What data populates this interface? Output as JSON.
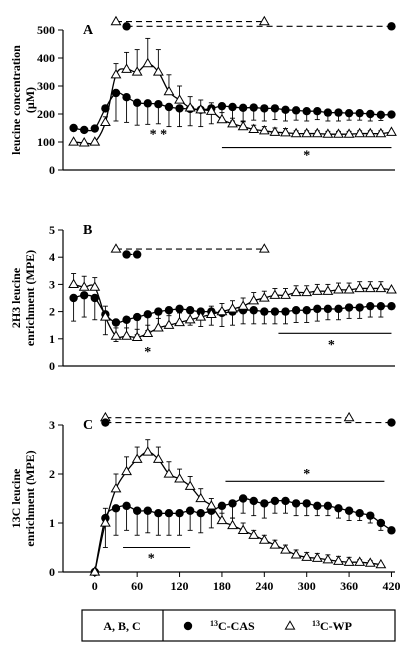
{
  "chart_data": [
    {
      "type": "line",
      "panel_label": "A",
      "ylabel": [
        "leucine concentration",
        "(μM)"
      ],
      "ylim": [
        0,
        500
      ],
      "yticks": [
        0,
        100,
        200,
        300,
        400,
        500
      ],
      "xlim": [
        -45,
        425
      ],
      "annotation_y": 515,
      "series": [
        {
          "name": "13C-CAS",
          "marker": "filled-circle",
          "x": [
            -30,
            -15,
            0,
            15,
            30,
            45,
            60,
            75,
            90,
            105,
            120,
            135,
            150,
            165,
            180,
            195,
            210,
            225,
            240,
            255,
            270,
            285,
            300,
            315,
            330,
            345,
            360,
            375,
            390,
            405,
            420
          ],
          "y": [
            150,
            143,
            148,
            220,
            275,
            260,
            240,
            238,
            235,
            225,
            220,
            218,
            215,
            220,
            228,
            225,
            222,
            223,
            220,
            220,
            215,
            213,
            210,
            210,
            205,
            205,
            203,
            203,
            200,
            197,
            198
          ],
          "err": [
            0,
            0,
            0,
            0,
            100,
            90,
            80,
            75,
            70,
            70,
            65,
            60,
            60,
            55,
            55,
            50,
            50,
            45,
            45,
            40,
            40,
            35,
            35,
            30,
            30,
            30,
            25,
            25,
            25,
            20,
            0
          ]
        },
        {
          "name": "13C-WP",
          "marker": "open-triangle",
          "x": [
            -30,
            -15,
            0,
            15,
            30,
            45,
            60,
            75,
            90,
            105,
            120,
            135,
            150,
            165,
            180,
            195,
            210,
            225,
            240,
            255,
            270,
            285,
            300,
            315,
            330,
            345,
            360,
            375,
            390,
            405,
            420
          ],
          "y": [
            100,
            97,
            100,
            170,
            340,
            360,
            350,
            380,
            350,
            280,
            250,
            222,
            215,
            210,
            180,
            165,
            155,
            145,
            140,
            135,
            133,
            130,
            130,
            130,
            128,
            128,
            128,
            130,
            130,
            130,
            135
          ],
          "err": [
            0,
            0,
            0,
            20,
            40,
            60,
            80,
            90,
            80,
            60,
            50,
            40,
            35,
            30,
            25,
            20,
            20,
            15,
            15,
            15,
            15,
            10,
            10,
            10,
            10,
            10,
            10,
            10,
            10,
            10,
            0
          ]
        }
      ],
      "lines": [
        {
          "style": "dashed",
          "series": "13C-WP",
          "x1": 30,
          "x2": 240,
          "y": 530
        },
        {
          "style": "dashed",
          "series": "13C-CAS",
          "x1": 45,
          "x2": 420,
          "y": 513
        },
        {
          "style": "solid",
          "x1": 180,
          "x2": 420,
          "y": 80
        }
      ],
      "asterisks": [
        {
          "text": "* *",
          "x": 90,
          "y": 130
        },
        {
          "text": "*",
          "x": 300,
          "y": 55
        }
      ]
    },
    {
      "type": "line",
      "panel_label": "B",
      "ylabel": [
        "2H3 leucine",
        "enrichment (MPE)"
      ],
      "ylim": [
        0,
        5
      ],
      "yticks": [
        0,
        1,
        2,
        3,
        4,
        5
      ],
      "xlim": [
        -45,
        425
      ],
      "series": [
        {
          "name": "13C-CAS",
          "marker": "filled-circle",
          "x": [
            -30,
            -15,
            0,
            15,
            30,
            45,
            60,
            75,
            90,
            105,
            120,
            135,
            150,
            165,
            180,
            195,
            210,
            225,
            240,
            255,
            270,
            285,
            300,
            315,
            330,
            345,
            360,
            375,
            390,
            405,
            420
          ],
          "y": [
            2.5,
            2.6,
            2.5,
            1.9,
            1.6,
            1.7,
            1.8,
            1.9,
            2.0,
            2.05,
            2.1,
            2.05,
            2.0,
            2.0,
            1.95,
            2.0,
            2.05,
            2.05,
            2.0,
            2.0,
            2.0,
            2.05,
            2.05,
            2.1,
            2.1,
            2.1,
            2.15,
            2.15,
            2.2,
            2.2,
            2.2
          ],
          "err": [
            0.85,
            0.8,
            0.8,
            0.75,
            0.7,
            0.65,
            0.65,
            0.6,
            0.6,
            0.6,
            0.55,
            0.55,
            0.55,
            0.5,
            0.5,
            0.5,
            0.5,
            0.5,
            0.45,
            0.45,
            0.45,
            0.45,
            0.45,
            0.45,
            0.4,
            0.4,
            0.4,
            0.4,
            0.4,
            0.4,
            0
          ]
        },
        {
          "name": "13C-WP",
          "marker": "open-triangle",
          "x": [
            -30,
            -15,
            0,
            15,
            30,
            45,
            60,
            75,
            90,
            105,
            120,
            135,
            150,
            165,
            180,
            195,
            210,
            225,
            240,
            255,
            270,
            285,
            300,
            315,
            330,
            345,
            360,
            375,
            390,
            405,
            420
          ],
          "y": [
            3.0,
            2.9,
            2.9,
            1.8,
            1.1,
            1.1,
            1.05,
            1.2,
            1.4,
            1.5,
            1.6,
            1.7,
            1.8,
            1.9,
            2.0,
            2.1,
            2.2,
            2.4,
            2.5,
            2.6,
            2.6,
            2.7,
            2.7,
            2.75,
            2.75,
            2.8,
            2.8,
            2.85,
            2.85,
            2.85,
            2.8
          ],
          "err": [
            0.4,
            0.4,
            0.35,
            0.4,
            0.3,
            0.3,
            0.3,
            0.3,
            0.35,
            0.35,
            0.35,
            0.3,
            0.3,
            0.3,
            0.3,
            0.3,
            0.3,
            0.3,
            0.25,
            0.25,
            0.25,
            0.25,
            0.25,
            0.25,
            0.25,
            0.25,
            0.25,
            0.25,
            0.25,
            0.25,
            0
          ]
        }
      ],
      "lines": [
        {
          "style": "dashed",
          "series": "13C-WP",
          "x1": 30,
          "x2": 240,
          "y": 4.3
        },
        {
          "style": "dashed",
          "series": "13C-CAS",
          "x1": 45,
          "x2": 60,
          "y": 4.1
        },
        {
          "style": "solid",
          "x1": 260,
          "x2": 420,
          "y": 1.2
        }
      ],
      "asterisks": [
        {
          "text": "*",
          "x": 75,
          "y": 0.55
        },
        {
          "text": "*",
          "x": 335,
          "y": 0.8
        }
      ]
    },
    {
      "type": "line",
      "panel_label": "C",
      "ylabel": [
        "13C leucine",
        "enrichment (MPE)"
      ],
      "ylim": [
        0,
        3
      ],
      "yticks": [
        0,
        1,
        2,
        3
      ],
      "xlim": [
        -45,
        425
      ],
      "xticks": [
        0,
        60,
        120,
        180,
        240,
        300,
        360,
        420
      ],
      "series": [
        {
          "name": "13C-CAS",
          "marker": "filled-circle",
          "x": [
            0,
            15,
            30,
            45,
            60,
            75,
            90,
            105,
            120,
            135,
            150,
            165,
            180,
            195,
            210,
            225,
            240,
            255,
            270,
            285,
            300,
            315,
            330,
            345,
            360,
            375,
            390,
            405,
            420
          ],
          "y": [
            0,
            1.1,
            1.3,
            1.35,
            1.25,
            1.25,
            1.2,
            1.2,
            1.2,
            1.25,
            1.2,
            1.25,
            1.35,
            1.4,
            1.5,
            1.45,
            1.4,
            1.45,
            1.45,
            1.4,
            1.4,
            1.35,
            1.35,
            1.3,
            1.25,
            1.2,
            1.15,
            1.0,
            0.85
          ],
          "err": [
            0,
            0.6,
            0.55,
            0.5,
            0.5,
            0.45,
            0.45,
            0.45,
            0.45,
            0.4,
            0.4,
            0.35,
            0.35,
            0.3,
            0.3,
            0.3,
            0.3,
            0.25,
            0.25,
            0.25,
            0.25,
            0.2,
            0.2,
            0.2,
            0.2,
            0.15,
            0.15,
            0.15,
            0
          ]
        },
        {
          "name": "13C-WP",
          "marker": "open-triangle",
          "x": [
            0,
            15,
            30,
            45,
            60,
            75,
            90,
            105,
            120,
            135,
            150,
            165,
            180,
            195,
            210,
            225,
            240,
            255,
            270,
            285,
            300,
            315,
            330,
            345,
            360,
            375,
            390,
            405
          ],
          "y": [
            0,
            1.0,
            1.7,
            2.05,
            2.3,
            2.45,
            2.3,
            2.0,
            1.9,
            1.75,
            1.5,
            1.35,
            1.05,
            0.95,
            0.85,
            0.75,
            0.65,
            0.55,
            0.45,
            0.35,
            0.3,
            0.28,
            0.25,
            0.22,
            0.2,
            0.2,
            0.18,
            0.15
          ],
          "err": [
            0,
            0.3,
            0.3,
            0.3,
            0.25,
            0.25,
            0.25,
            0.25,
            0.2,
            0.2,
            0.2,
            0.15,
            0.15,
            0.15,
            0.15,
            0.1,
            0.1,
            0.1,
            0.1,
            0.1,
            0.1,
            0.1,
            0.1,
            0.1,
            0.1,
            0.05,
            0.05,
            0
          ]
        }
      ],
      "lines": [
        {
          "style": "dashed",
          "series": "13C-WP",
          "x1": 15,
          "x2": 360,
          "y": 3.15
        },
        {
          "style": "dashed",
          "series": "13C-CAS",
          "x1": 15,
          "x2": 420,
          "y": 3.05
        },
        {
          "style": "solid",
          "x1": 185,
          "x2": 410,
          "y": 1.85
        },
        {
          "style": "solid",
          "x1": 40,
          "x2": 135,
          "y": 0.5
        }
      ],
      "asterisks": [
        {
          "text": "*",
          "x": 300,
          "y": 2.02
        },
        {
          "text": "*",
          "x": 80,
          "y": 0.3
        }
      ]
    }
  ],
  "legend": {
    "label": "A, B, C",
    "items": [
      {
        "marker": "filled-circle",
        "sup": "13",
        "text": "C-CAS"
      },
      {
        "marker": "open-triangle",
        "sup": "13",
        "text": "C-WP"
      }
    ]
  }
}
